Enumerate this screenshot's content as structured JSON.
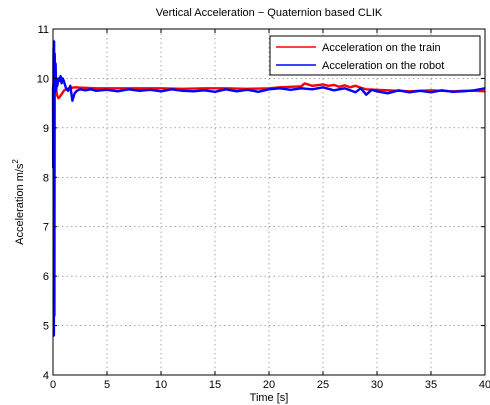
{
  "chart_data": {
    "type": "line",
    "title": "Vertical Acceleration − Quaternion based CLIK",
    "xlabel": "Time [s]",
    "ylabel_main": "Acceleration m/s",
    "ylabel_sup": "2",
    "xlim": [
      0,
      40
    ],
    "ylim": [
      4,
      11
    ],
    "xticks": [
      0,
      5,
      10,
      15,
      20,
      25,
      30,
      35,
      40
    ],
    "yticks": [
      4,
      5,
      6,
      7,
      8,
      9,
      10,
      11
    ],
    "grid": true,
    "legend_position": "top-right",
    "series": [
      {
        "name": "Acceleration on the train",
        "color": "#ff0000",
        "x": [
          0,
          0.05,
          0.1,
          0.15,
          0.2,
          0.3,
          0.4,
          0.5,
          0.6,
          0.8,
          1.0,
          1.2,
          1.5,
          2,
          3,
          4,
          5,
          6,
          8,
          10,
          12,
          14,
          16,
          18,
          20,
          21,
          22,
          23,
          23.3,
          24,
          25,
          25.5,
          26,
          26.5,
          27,
          27.5,
          28,
          28.5,
          29,
          30,
          31,
          32,
          33,
          34,
          35,
          36,
          37,
          38,
          39,
          40
        ],
        "y": [
          9.8,
          9.9,
          9.95,
          9.9,
          9.85,
          9.75,
          9.65,
          9.6,
          9.62,
          9.68,
          9.75,
          9.78,
          9.8,
          9.82,
          9.81,
          9.8,
          9.8,
          9.8,
          9.8,
          9.8,
          9.79,
          9.8,
          9.8,
          9.79,
          9.8,
          9.82,
          9.83,
          9.84,
          9.9,
          9.85,
          9.88,
          9.85,
          9.87,
          9.83,
          9.86,
          9.82,
          9.85,
          9.81,
          9.78,
          9.77,
          9.76,
          9.75,
          9.74,
          9.75,
          9.76,
          9.75,
          9.74,
          9.75,
          9.75,
          9.74
        ]
      },
      {
        "name": "Acceleration on the robot",
        "color": "#0000ff",
        "x": [
          0,
          0.02,
          0.05,
          0.08,
          0.1,
          0.13,
          0.16,
          0.2,
          0.24,
          0.3,
          0.35,
          0.4,
          0.5,
          0.6,
          0.7,
          0.8,
          0.9,
          1.0,
          1.2,
          1.4,
          1.6,
          1.8,
          2.0,
          2.2,
          2.5,
          3.0,
          3.5,
          4,
          5,
          6,
          7,
          8,
          9,
          10,
          11,
          12,
          13,
          14,
          15,
          16,
          17,
          18,
          19,
          20,
          21,
          22,
          23,
          24,
          25,
          26,
          27,
          28,
          28.5,
          29,
          29.5,
          30,
          31,
          32,
          33,
          34,
          35,
          36,
          37,
          38,
          39,
          40
        ],
        "y": [
          9.8,
          8.2,
          10.6,
          4.8,
          10.75,
          5.2,
          10.5,
          9.9,
          10.3,
          9.75,
          9.9,
          9.85,
          10.0,
          9.95,
          10.05,
          9.9,
          10.0,
          9.95,
          9.8,
          9.75,
          9.85,
          9.55,
          9.7,
          9.75,
          9.78,
          9.76,
          9.78,
          9.75,
          9.77,
          9.74,
          9.78,
          9.75,
          9.77,
          9.74,
          9.78,
          9.75,
          9.74,
          9.76,
          9.73,
          9.78,
          9.74,
          9.77,
          9.73,
          9.78,
          9.8,
          9.77,
          9.8,
          9.78,
          9.82,
          9.76,
          9.8,
          9.72,
          9.8,
          9.67,
          9.77,
          9.74,
          9.7,
          9.76,
          9.72,
          9.75,
          9.72,
          9.76,
          9.73,
          9.74,
          9.76,
          9.8
        ]
      }
    ]
  }
}
